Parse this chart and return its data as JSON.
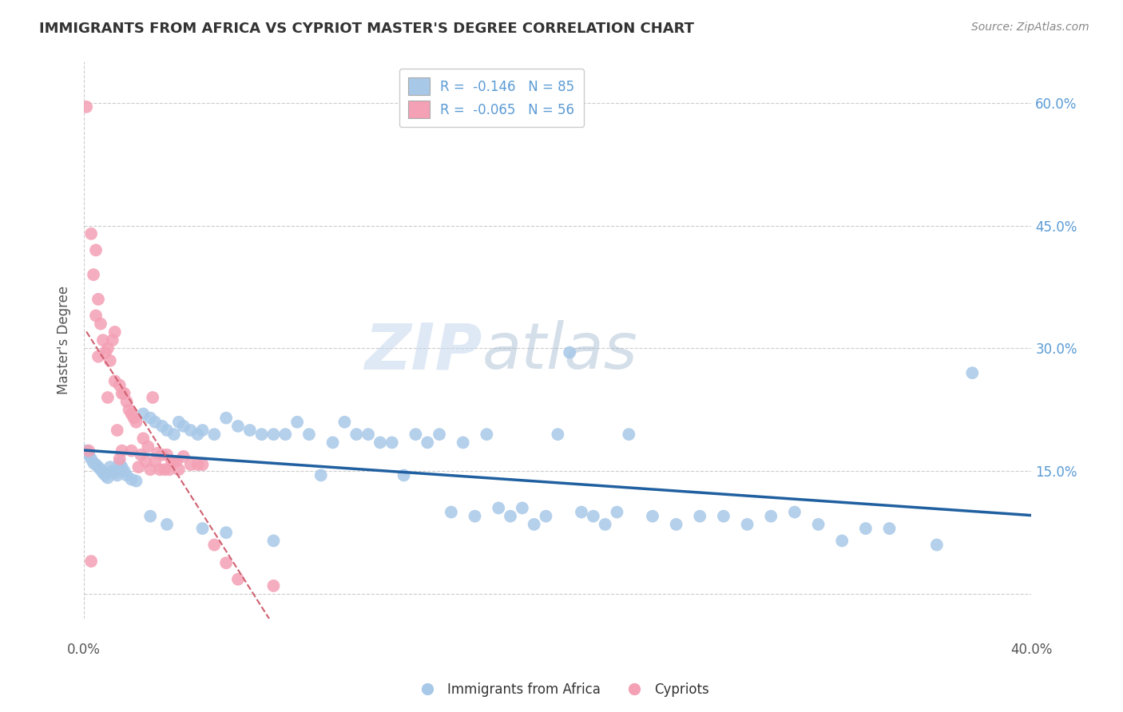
{
  "title": "IMMIGRANTS FROM AFRICA VS CYPRIOT MASTER'S DEGREE CORRELATION CHART",
  "source": "Source: ZipAtlas.com",
  "ylabel": "Master's Degree",
  "xlim": [
    0.0,
    0.4
  ],
  "ylim": [
    -0.03,
    0.65
  ],
  "yticks": [
    0.0,
    0.15,
    0.3,
    0.45,
    0.6
  ],
  "ytick_labels": [
    "",
    "15.0%",
    "30.0%",
    "45.0%",
    "60.0%"
  ],
  "xticks": [
    0.0,
    0.1,
    0.2,
    0.3,
    0.4
  ],
  "bg_color": "#ffffff",
  "grid_color": "#cccccc",
  "blue_color": "#a8c8e8",
  "pink_color": "#f4a0b5",
  "blue_line_color": "#2060a0",
  "pink_line_color": "#d06070",
  "watermark_zip": "ZIP",
  "watermark_atlas": "atlas",
  "blue_scatter_x": [
    0.001,
    0.002,
    0.003,
    0.004,
    0.005,
    0.006,
    0.007,
    0.008,
    0.009,
    0.01,
    0.011,
    0.012,
    0.013,
    0.014,
    0.015,
    0.016,
    0.017,
    0.018,
    0.02,
    0.022,
    0.025,
    0.028,
    0.03,
    0.033,
    0.035,
    0.038,
    0.04,
    0.042,
    0.045,
    0.048,
    0.05,
    0.055,
    0.06,
    0.065,
    0.07,
    0.075,
    0.08,
    0.085,
    0.09,
    0.095,
    0.1,
    0.105,
    0.11,
    0.115,
    0.12,
    0.125,
    0.13,
    0.135,
    0.14,
    0.145,
    0.15,
    0.155,
    0.16,
    0.165,
    0.17,
    0.175,
    0.18,
    0.185,
    0.19,
    0.195,
    0.2,
    0.205,
    0.21,
    0.215,
    0.22,
    0.225,
    0.23,
    0.24,
    0.25,
    0.26,
    0.27,
    0.28,
    0.29,
    0.3,
    0.31,
    0.32,
    0.33,
    0.34,
    0.36,
    0.375,
    0.028,
    0.035,
    0.05,
    0.06,
    0.08
  ],
  "blue_scatter_y": [
    0.175,
    0.17,
    0.165,
    0.16,
    0.158,
    0.155,
    0.152,
    0.148,
    0.145,
    0.142,
    0.155,
    0.15,
    0.148,
    0.145,
    0.16,
    0.155,
    0.15,
    0.145,
    0.14,
    0.138,
    0.22,
    0.215,
    0.21,
    0.205,
    0.2,
    0.195,
    0.21,
    0.205,
    0.2,
    0.195,
    0.2,
    0.195,
    0.215,
    0.205,
    0.2,
    0.195,
    0.195,
    0.195,
    0.21,
    0.195,
    0.145,
    0.185,
    0.21,
    0.195,
    0.195,
    0.185,
    0.185,
    0.145,
    0.195,
    0.185,
    0.195,
    0.1,
    0.185,
    0.095,
    0.195,
    0.105,
    0.095,
    0.105,
    0.085,
    0.095,
    0.195,
    0.295,
    0.1,
    0.095,
    0.085,
    0.1,
    0.195,
    0.095,
    0.085,
    0.095,
    0.095,
    0.085,
    0.095,
    0.1,
    0.085,
    0.065,
    0.08,
    0.08,
    0.06,
    0.27,
    0.095,
    0.085,
    0.08,
    0.075,
    0.065
  ],
  "pink_scatter_x": [
    0.001,
    0.002,
    0.003,
    0.004,
    0.005,
    0.005,
    0.006,
    0.006,
    0.007,
    0.008,
    0.009,
    0.01,
    0.01,
    0.011,
    0.012,
    0.013,
    0.013,
    0.014,
    0.015,
    0.015,
    0.016,
    0.016,
    0.017,
    0.018,
    0.019,
    0.02,
    0.02,
    0.021,
    0.022,
    0.023,
    0.024,
    0.025,
    0.026,
    0.027,
    0.028,
    0.029,
    0.03,
    0.031,
    0.032,
    0.033,
    0.034,
    0.035,
    0.036,
    0.037,
    0.038,
    0.039,
    0.04,
    0.042,
    0.045,
    0.048,
    0.05,
    0.055,
    0.06,
    0.065,
    0.08,
    0.003
  ],
  "pink_scatter_y": [
    0.595,
    0.175,
    0.44,
    0.39,
    0.42,
    0.34,
    0.36,
    0.29,
    0.33,
    0.31,
    0.295,
    0.3,
    0.24,
    0.285,
    0.31,
    0.26,
    0.32,
    0.2,
    0.255,
    0.165,
    0.245,
    0.175,
    0.245,
    0.235,
    0.225,
    0.22,
    0.175,
    0.215,
    0.21,
    0.155,
    0.17,
    0.19,
    0.162,
    0.18,
    0.152,
    0.24,
    0.162,
    0.172,
    0.152,
    0.17,
    0.152,
    0.17,
    0.152,
    0.162,
    0.162,
    0.162,
    0.152,
    0.168,
    0.158,
    0.158,
    0.158,
    0.06,
    0.038,
    0.018,
    0.01,
    0.04
  ]
}
